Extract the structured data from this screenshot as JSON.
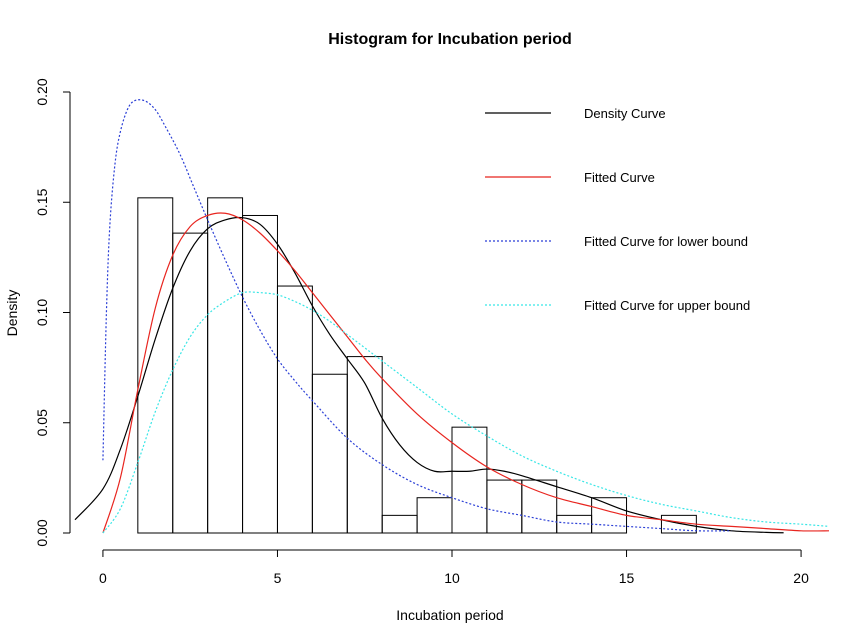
{
  "chart_data": {
    "type": "bar",
    "title": "Histogram for Incubation period",
    "xlabel": "Incubation period",
    "ylabel": "Density",
    "xlim": [
      -0.8,
      20.8
    ],
    "ylim": [
      0,
      0.2
    ],
    "x_ticks": [
      0,
      5,
      10,
      15,
      20
    ],
    "x_tick_labels": [
      "0",
      "5",
      "10",
      "15",
      "20"
    ],
    "y_ticks": [
      0.0,
      0.05,
      0.1,
      0.15,
      0.2
    ],
    "y_tick_labels": [
      "0.00",
      "0.05",
      "0.10",
      "0.15",
      "0.20"
    ],
    "histogram": {
      "bins": [
        {
          "x0": 1,
          "x1": 2,
          "density": 0.152
        },
        {
          "x0": 2,
          "x1": 3,
          "density": 0.136
        },
        {
          "x0": 3,
          "x1": 4,
          "density": 0.152
        },
        {
          "x0": 4,
          "x1": 5,
          "density": 0.144
        },
        {
          "x0": 5,
          "x1": 6,
          "density": 0.112
        },
        {
          "x0": 6,
          "x1": 7,
          "density": 0.072
        },
        {
          "x0": 7,
          "x1": 8,
          "density": 0.08
        },
        {
          "x0": 8,
          "x1": 9,
          "density": 0.008
        },
        {
          "x0": 9,
          "x1": 10,
          "density": 0.016
        },
        {
          "x0": 10,
          "x1": 11,
          "density": 0.048
        },
        {
          "x0": 11,
          "x1": 12,
          "density": 0.024
        },
        {
          "x0": 12,
          "x1": 13,
          "density": 0.024
        },
        {
          "x0": 13,
          "x1": 14,
          "density": 0.008
        },
        {
          "x0": 14,
          "x1": 15,
          "density": 0.016
        },
        {
          "x0": 15,
          "x1": 16,
          "density": 0.0
        },
        {
          "x0": 16,
          "x1": 17,
          "density": 0.008
        }
      ]
    },
    "series": [
      {
        "name": "Density Curve",
        "color": "#000000",
        "dash": "solid",
        "x": [
          -0.8,
          0,
          0.5,
          1,
          1.5,
          2,
          2.5,
          3,
          3.5,
          4,
          4.5,
          5,
          5.5,
          6,
          6.5,
          7,
          7.5,
          8,
          8.5,
          9,
          9.5,
          10,
          10.5,
          11,
          11.5,
          12,
          13,
          14,
          15,
          16,
          17,
          18,
          19,
          19.5
        ],
        "y": [
          0.006,
          0.02,
          0.038,
          0.062,
          0.088,
          0.111,
          0.128,
          0.138,
          0.142,
          0.143,
          0.14,
          0.131,
          0.118,
          0.103,
          0.09,
          0.079,
          0.068,
          0.052,
          0.04,
          0.032,
          0.028,
          0.028,
          0.028,
          0.029,
          0.028,
          0.026,
          0.021,
          0.016,
          0.01,
          0.006,
          0.003,
          0.001,
          0.0003,
          0.0001
        ]
      },
      {
        "name": "Fitted Curve",
        "color": "#e8251f",
        "dash": "solid",
        "x": [
          0,
          0.5,
          1,
          1.5,
          2,
          2.5,
          3,
          3.5,
          4,
          4.5,
          5,
          5.5,
          6,
          6.5,
          7,
          7.5,
          8,
          9,
          10,
          11,
          12,
          13,
          14,
          15,
          16,
          17,
          18,
          19,
          20,
          20.8
        ],
        "y": [
          0.0,
          0.025,
          0.065,
          0.102,
          0.126,
          0.139,
          0.144,
          0.145,
          0.142,
          0.136,
          0.128,
          0.119,
          0.109,
          0.099,
          0.089,
          0.079,
          0.07,
          0.054,
          0.041,
          0.03,
          0.022,
          0.016,
          0.012,
          0.008,
          0.006,
          0.004,
          0.003,
          0.002,
          0.001,
          0.001
        ]
      },
      {
        "name": "Fitted Curve for lower bound",
        "color": "#2b3fd6",
        "dash": "dotted",
        "x": [
          0,
          0.1,
          0.2,
          0.35,
          0.5,
          0.7,
          0.9,
          1.2,
          1.5,
          1.8,
          2.2,
          2.6,
          3,
          3.5,
          4,
          4.5,
          5,
          5.5,
          6,
          7,
          8,
          9,
          10,
          11,
          12,
          13,
          14,
          15,
          16,
          17,
          18
        ],
        "y": [
          0.033,
          0.1,
          0.14,
          0.168,
          0.182,
          0.192,
          0.196,
          0.196,
          0.192,
          0.184,
          0.172,
          0.157,
          0.142,
          0.124,
          0.107,
          0.092,
          0.079,
          0.069,
          0.06,
          0.043,
          0.031,
          0.022,
          0.016,
          0.011,
          0.008,
          0.005,
          0.004,
          0.003,
          0.002,
          0.001,
          0.001
        ]
      },
      {
        "name": "Fitted Curve for upper bound",
        "color": "#37e6e6",
        "dash": "dotted",
        "x": [
          0,
          0.5,
          1,
          1.5,
          2,
          2.5,
          3,
          3.5,
          4,
          4.5,
          5,
          5.5,
          6,
          6.5,
          7,
          7.5,
          8,
          9,
          10,
          11,
          12,
          13,
          14,
          15,
          16,
          17,
          18,
          19,
          20,
          20.8
        ],
        "y": [
          0.0,
          0.011,
          0.032,
          0.055,
          0.074,
          0.089,
          0.099,
          0.105,
          0.109,
          0.109,
          0.108,
          0.105,
          0.101,
          0.096,
          0.09,
          0.084,
          0.078,
          0.066,
          0.054,
          0.044,
          0.035,
          0.028,
          0.022,
          0.017,
          0.013,
          0.01,
          0.007,
          0.005,
          0.004,
          0.003
        ]
      }
    ],
    "legend": {
      "position": "top-right",
      "entries": [
        {
          "label": "Density Curve",
          "color": "#000000",
          "dash": "solid"
        },
        {
          "label": "Fitted Curve",
          "color": "#e8251f",
          "dash": "solid"
        },
        {
          "label": "Fitted Curve for lower bound",
          "color": "#2b3fd6",
          "dash": "dotted"
        },
        {
          "label": "Fitted Curve for upper bound",
          "color": "#37e6e6",
          "dash": "dotted"
        }
      ]
    }
  }
}
